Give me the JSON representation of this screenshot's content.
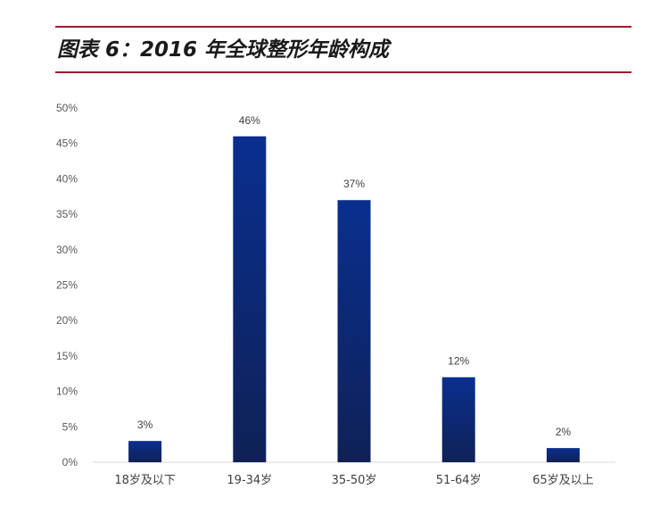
{
  "header": {
    "title": "图表 6：2016 年全球整形年龄构成"
  },
  "chart_data": {
    "type": "bar",
    "title": "",
    "xlabel": "",
    "ylabel": "",
    "categories": [
      "18岁及以下",
      "19-34岁",
      "35-50岁",
      "51-64岁",
      "65岁及以上"
    ],
    "values": [
      3,
      46,
      37,
      12,
      2
    ],
    "data_labels": [
      "3%",
      "46%",
      "37%",
      "12%",
      "2%"
    ],
    "ylim": [
      0,
      50
    ],
    "yticks": [
      0,
      5,
      10,
      15,
      20,
      25,
      30,
      35,
      40,
      45,
      50
    ],
    "ytick_labels": [
      "0%",
      "5%",
      "10%",
      "15%",
      "20%",
      "25%",
      "30%",
      "35%",
      "40%",
      "45%",
      "50%"
    ],
    "grid": false,
    "legend": "none",
    "colors": {
      "bar_top": "#0a2f8f",
      "bar_bottom": "#0f2156",
      "header_rule": "#9b1b2e",
      "axis": "#d9d9d9"
    }
  }
}
